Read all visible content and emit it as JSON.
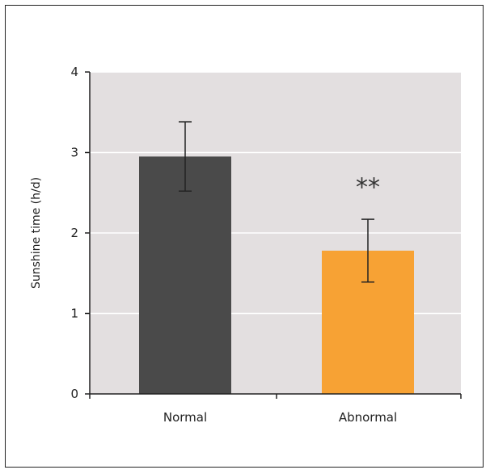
{
  "chart_data": {
    "type": "bar",
    "categories": [
      "Normal",
      "Abnormal"
    ],
    "values": [
      2.95,
      1.78
    ],
    "error": [
      0.43,
      0.39
    ],
    "colors": [
      "#4a4a4a",
      "#f7a234"
    ],
    "ylabel": "Sunshine time (h/d)",
    "xlabel": "",
    "ylim": [
      0,
      4
    ],
    "yticks": [
      0,
      1,
      2,
      3,
      4
    ],
    "grid": true,
    "background": "#e3dfe0",
    "annotations": [
      {
        "category": "Abnormal",
        "text": "**",
        "y": 2.65
      }
    ]
  }
}
